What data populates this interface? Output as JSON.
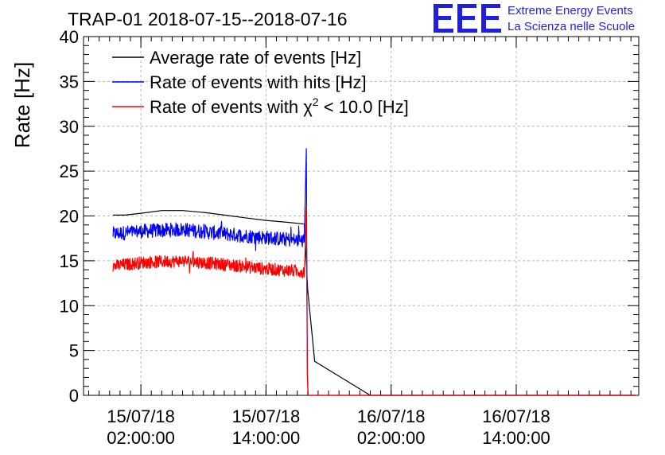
{
  "title": "TRAP-01 2018-07-15--2018-07-16",
  "logo": {
    "mark": "EEE",
    "line1": "Extreme Energy Events",
    "line2": "La Scienza nelle Scuole",
    "color": "#1f1fe0"
  },
  "chart_data": {
    "type": "line",
    "title": "TRAP-01 2018-07-15--2018-07-16",
    "xlabel": "",
    "ylabel": "Rate [Hz]",
    "ylim": [
      0,
      40
    ],
    "yticks": [
      0,
      5,
      10,
      15,
      20,
      25,
      30,
      35,
      40
    ],
    "xlim": [
      "2018-07-14T20:30:00",
      "2018-07-17T01:45:00"
    ],
    "xticks": [
      {
        "x": "2018-07-15T02:00:00",
        "line1": "15/07/18",
        "line2": "02:00:00"
      },
      {
        "x": "2018-07-15T14:00:00",
        "line1": "15/07/18",
        "line2": "14:00:00"
      },
      {
        "x": "2018-07-16T02:00:00",
        "line1": "16/07/18",
        "line2": "02:00:00"
      },
      {
        "x": "2018-07-16T14:00:00",
        "line1": "16/07/18",
        "line2": "14:00:00"
      }
    ],
    "grid": true,
    "legend_position": "top-left",
    "series": [
      {
        "name": "Average rate of events [Hz]",
        "color": "#000000",
        "style": "smooth",
        "x": [
          "2018-07-14T23:20:00",
          "2018-07-15T00:30:00",
          "2018-07-15T02:00:00",
          "2018-07-15T04:00:00",
          "2018-07-15T06:00:00",
          "2018-07-15T08:00:00",
          "2018-07-15T10:00:00",
          "2018-07-15T12:00:00",
          "2018-07-15T14:00:00",
          "2018-07-15T16:00:00",
          "2018-07-15T17:40:00",
          "2018-07-15T18:00:00",
          "2018-07-15T18:40:00",
          "2018-07-16T00:00:00",
          "2018-07-17T01:30:00"
        ],
        "y": [
          20.1,
          20.1,
          20.3,
          20.6,
          20.6,
          20.4,
          20.1,
          19.8,
          19.5,
          19.3,
          19.1,
          11.8,
          3.8,
          0.0,
          0.0
        ]
      },
      {
        "name": "Rate of events with hits [Hz]",
        "color": "#0000ff",
        "style": "noisy",
        "noise": 0.8,
        "x": [
          "2018-07-14T23:20:00",
          "2018-07-15T02:00:00",
          "2018-07-15T06:00:00",
          "2018-07-15T10:00:00",
          "2018-07-15T14:00:00",
          "2018-07-15T17:40:00",
          "2018-07-15T17:52:00",
          "2018-07-15T17:58:00",
          "2018-07-15T18:02:00",
          "2018-07-15T18:05:00",
          "2018-07-17T01:30:00"
        ],
        "y": [
          18.0,
          18.3,
          18.5,
          18.0,
          17.6,
          17.2,
          27.5,
          2.5,
          0.0,
          0.0,
          0.0
        ],
        "noise_until": "2018-07-15T17:40:00"
      },
      {
        "name": "Rate of events with χ² < 10.0 [Hz]",
        "color": "#ff0000",
        "style": "noisy",
        "noise": 0.7,
        "x": [
          "2018-07-14T23:20:00",
          "2018-07-15T02:00:00",
          "2018-07-15T06:00:00",
          "2018-07-15T10:00:00",
          "2018-07-15T14:00:00",
          "2018-07-15T17:40:00",
          "2018-07-15T17:52:00",
          "2018-07-15T17:58:00",
          "2018-07-15T18:02:00",
          "2018-07-15T18:05:00",
          "2018-07-17T01:30:00"
        ],
        "y": [
          14.4,
          14.8,
          15.0,
          14.6,
          14.1,
          13.8,
          21.0,
          2.0,
          0.0,
          0.0,
          0.0
        ],
        "noise_until": "2018-07-15T17:40:00"
      }
    ],
    "legend": [
      {
        "label": "Average rate of events [Hz]",
        "color": "#000000"
      },
      {
        "label": "Rate of events with hits [Hz]",
        "color": "#0000ff"
      },
      {
        "label_pre": "Rate of events with ",
        "label_sym": "χ",
        "label_sup": "2",
        "label_post": " < 10.0 [Hz]",
        "color": "#ff0000"
      }
    ]
  }
}
